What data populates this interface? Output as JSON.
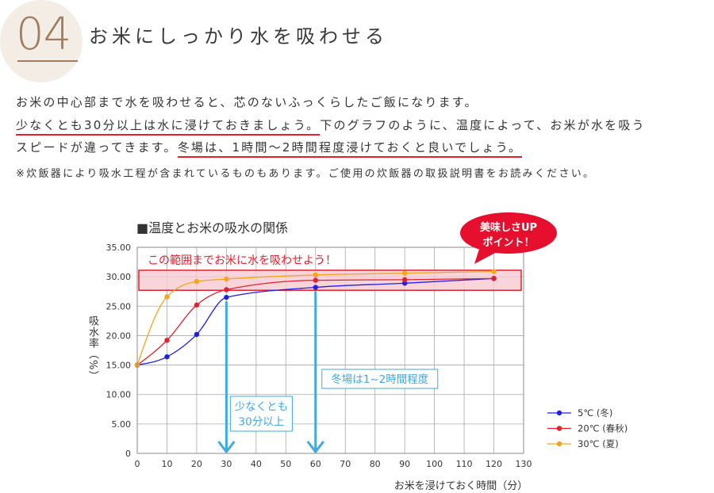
{
  "section": {
    "number": "04",
    "title": "お米にしっかり水を吸わせる"
  },
  "body": {
    "line1": "お米の中心部まで水を吸わせると、芯のないふっくらしたご飯になります。",
    "line2_emphasis": "少なくとも30分以上は水に浸けておきましょう。",
    "line2_rest": "下のグラフのように、温度によって、お米が水を吸う",
    "line3_start": "スピードが違ってきます。",
    "line3_emphasis": "冬場は、1時間〜2時間程度浸けておくと良いでしょう。",
    "note": "※炊飯器により吸水工程が含まれているものもあります。ご使用の炊飯器の取扱説明書をお読みください。",
    "emphasis_color": "#e5202e"
  },
  "theme": {
    "badge_bg": "#f3ede6",
    "badge_accent": "#a07d5e",
    "text": "#333333"
  },
  "chart_data": {
    "type": "line",
    "title": "■温度とお米の吸水の関係",
    "xlabel": "お米を浸けておく時間（分）",
    "ylabel": "吸水率（%）",
    "x": [
      0,
      10,
      20,
      30,
      60,
      90,
      120
    ],
    "xlim": [
      0,
      130
    ],
    "ylim": [
      0,
      35
    ],
    "xticks": [
      "0",
      "10",
      "20",
      "30",
      "40",
      "50",
      "60",
      "70",
      "80",
      "90",
      "100",
      "110",
      "120",
      "130"
    ],
    "yticks": [
      "0",
      "5.00",
      "10.00",
      "15.00",
      "20.00",
      "25.00",
      "30.00",
      "35.00"
    ],
    "grid": true,
    "legend_position": "right",
    "series": [
      {
        "name": "5℃ (冬)",
        "color": "#2020e0",
        "values": [
          15,
          16.4,
          20.2,
          26.5,
          28.2,
          28.9,
          29.7
        ]
      },
      {
        "name": "20℃ (春秋)",
        "color": "#e5202e",
        "values": [
          15,
          19.2,
          25.2,
          27.8,
          29.4,
          29.5,
          29.7
        ]
      },
      {
        "name": "30℃ (夏)",
        "color": "#f5a41c",
        "values": [
          15,
          26.6,
          29.2,
          29.6,
          30.3,
          30.6,
          30.9
        ]
      }
    ],
    "target_band": {
      "label": "この範囲までお米に水を吸わせよう！",
      "y_range": [
        27.7,
        31.1
      ],
      "fill": "#f6c9d2",
      "stroke": "#e5202e"
    },
    "callout": {
      "line1": "美味しさUP",
      "line2": "ポイント！",
      "color": "#e60f2d"
    },
    "markers": [
      {
        "x": 30,
        "label_lines": [
          "少なくとも",
          "30分以上"
        ]
      },
      {
        "x": 60,
        "label_lines": [
          "冬場は1~2時間程度"
        ]
      }
    ],
    "marker_color": "#3fa9e1"
  }
}
